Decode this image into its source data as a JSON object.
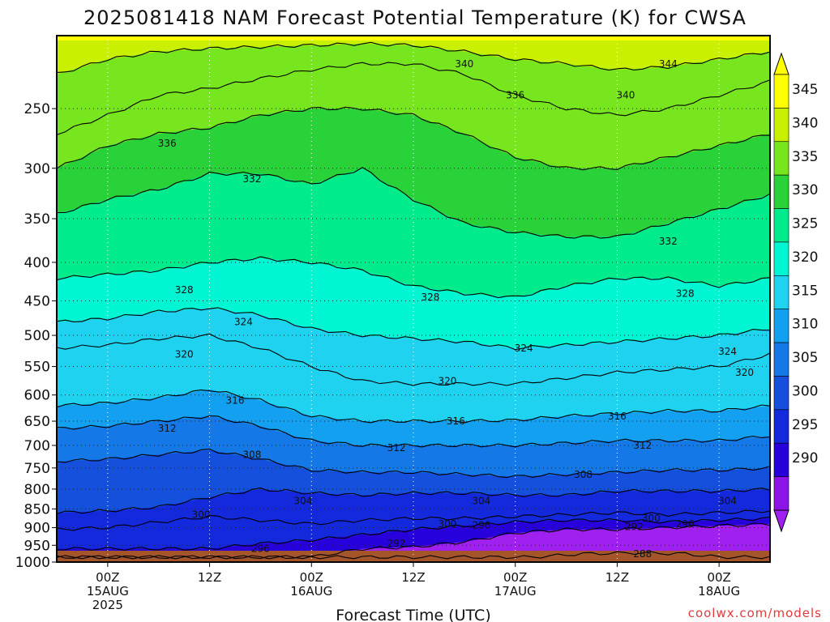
{
  "chart_data": {
    "type": "heatmap",
    "title": "2025081418 NAM Forecast Potential Temperature (K) for CWSA",
    "xlabel": "Forecast Time (UTC)",
    "ylabel": "",
    "credit": "coolwx.com/models",
    "y_scale": "log",
    "y_reversed": true,
    "ylim": [
      1000,
      200
    ],
    "y_ticks": [
      250,
      300,
      350,
      400,
      450,
      500,
      550,
      600,
      650,
      700,
      750,
      800,
      850,
      900,
      950,
      1000
    ],
    "x_ticks": [
      {
        "hour": 6,
        "line1": "00Z",
        "line2": "15AUG",
        "line3": "2025"
      },
      {
        "hour": 18,
        "line1": "12Z",
        "line2": "",
        "line3": ""
      },
      {
        "hour": 30,
        "line1": "00Z",
        "line2": "16AUG",
        "line3": ""
      },
      {
        "hour": 42,
        "line1": "12Z",
        "line2": "",
        "line3": ""
      },
      {
        "hour": 54,
        "line1": "00Z",
        "line2": "17AUG",
        "line3": ""
      },
      {
        "hour": 66,
        "line1": "12Z",
        "line2": "",
        "line3": ""
      },
      {
        "hour": 78,
        "line1": "00Z",
        "line2": "18AUG",
        "line3": ""
      }
    ],
    "x_range_hours": [
      0,
      84
    ],
    "grid": true,
    "colorbar": {
      "labels": [
        345,
        340,
        335,
        330,
        325,
        320,
        315,
        310,
        305,
        300,
        295,
        290
      ],
      "colors": [
        "#ffff00",
        "#c8f000",
        "#78e61e",
        "#2ad23a",
        "#00eb8c",
        "#00f5d2",
        "#1ed2f0",
        "#14a0f0",
        "#1478e6",
        "#1450dc",
        "#1428dc",
        "#2800dc",
        "#8c14e6"
      ],
      "top_color": "#ffff00",
      "bottom_color": "#a020f0"
    },
    "series": [
      {
        "name": "288",
        "level": 288,
        "x": [
          56,
          62,
          68,
          74,
          78
        ],
        "y": [
          985,
          975,
          972,
          975,
          985
        ]
      },
      {
        "name": "292",
        "level": 292,
        "x": [
          30,
          36,
          42,
          48,
          54,
          60,
          66,
          72,
          78,
          84
        ],
        "y": [
          985,
          960,
          955,
          940,
          915,
          905,
          905,
          900,
          895,
          890
        ]
      },
      {
        "name": "296",
        "level": 296,
        "x": [
          18,
          24,
          30,
          36,
          42,
          48,
          54,
          60,
          66,
          72,
          78,
          84
        ],
        "y": [
          960,
          945,
          935,
          920,
          905,
          895,
          885,
          880,
          880,
          885,
          880,
          875
        ]
      },
      {
        "name": "300",
        "level": 300,
        "x": [
          0,
          6,
          12,
          18,
          24,
          30,
          36,
          42,
          48,
          54,
          60,
          66,
          72,
          78,
          84
        ],
        "y": [
          905,
          900,
          885,
          870,
          880,
          890,
          880,
          875,
          875,
          870,
          865,
          860,
          865,
          860,
          855
        ]
      },
      {
        "name": "304",
        "level": 304,
        "x": [
          0,
          6,
          12,
          18,
          24,
          30,
          36,
          42,
          48,
          54,
          60,
          66,
          72,
          78,
          84
        ],
        "y": [
          860,
          855,
          845,
          820,
          800,
          810,
          815,
          810,
          810,
          815,
          815,
          805,
          805,
          805,
          800
        ]
      },
      {
        "name": "308",
        "level": 308,
        "x": [
          0,
          6,
          12,
          18,
          24,
          30,
          36,
          42,
          48,
          54,
          60,
          66,
          72,
          78,
          84
        ],
        "y": [
          735,
          730,
          720,
          710,
          730,
          755,
          760,
          760,
          765,
          770,
          765,
          760,
          755,
          755,
          750
        ]
      },
      {
        "name": "312",
        "level": 312,
        "x": [
          0,
          6,
          12,
          18,
          24,
          30,
          36,
          42,
          48,
          54,
          60,
          66,
          72,
          78,
          84
        ],
        "y": [
          665,
          660,
          650,
          640,
          660,
          690,
          700,
          700,
          700,
          700,
          695,
          690,
          690,
          690,
          680
        ]
      },
      {
        "name": "316",
        "level": 316,
        "x": [
          0,
          6,
          12,
          18,
          24,
          30,
          36,
          42,
          48,
          54,
          60,
          66,
          72,
          78,
          84
        ],
        "y": [
          620,
          615,
          605,
          590,
          610,
          640,
          650,
          650,
          650,
          648,
          640,
          635,
          630,
          630,
          620
        ]
      },
      {
        "name": "320",
        "level": 320,
        "x": [
          0,
          6,
          12,
          18,
          24,
          30,
          36,
          42,
          48,
          54,
          60,
          66,
          72,
          78,
          84
        ],
        "y": [
          520,
          515,
          505,
          500,
          520,
          550,
          575,
          580,
          580,
          580,
          570,
          560,
          555,
          550,
          530
        ]
      },
      {
        "name": "324",
        "level": 324,
        "x": [
          0,
          6,
          12,
          18,
          24,
          30,
          36,
          42,
          48,
          54,
          60,
          66,
          72,
          78,
          84
        ],
        "y": [
          480,
          475,
          465,
          460,
          470,
          490,
          500,
          505,
          510,
          520,
          515,
          510,
          505,
          500,
          490
        ]
      },
      {
        "name": "328",
        "level": 328,
        "x": [
          0,
          6,
          12,
          18,
          24,
          30,
          36,
          42,
          48,
          54,
          60,
          66,
          72,
          78,
          84
        ],
        "y": [
          420,
          415,
          410,
          400,
          395,
          400,
          410,
          430,
          440,
          445,
          430,
          420,
          420,
          430,
          420
        ]
      },
      {
        "name": "332",
        "level": 332,
        "x": [
          0,
          6,
          12,
          18,
          24,
          30,
          36,
          42,
          48,
          54,
          60,
          66,
          72,
          78,
          84
        ],
        "y": [
          345,
          330,
          320,
          305,
          305,
          315,
          300,
          330,
          355,
          365,
          370,
          370,
          355,
          340,
          325
        ]
      },
      {
        "name": "336",
        "level": 336,
        "x": [
          0,
          6,
          12,
          18,
          24,
          30,
          36,
          42,
          48,
          54,
          60,
          66,
          72,
          78,
          84
        ],
        "y": [
          300,
          280,
          270,
          265,
          255,
          250,
          250,
          255,
          270,
          290,
          300,
          300,
          290,
          280,
          270
        ]
      },
      {
        "name": "340",
        "level": 340,
        "x": [
          0,
          6,
          12,
          18,
          24,
          30,
          36,
          42,
          48,
          54,
          60,
          66,
          72,
          78,
          84
        ],
        "y": [
          270,
          255,
          240,
          235,
          228,
          222,
          218,
          218,
          225,
          240,
          250,
          255,
          250,
          240,
          230
        ]
      },
      {
        "name": "344",
        "level": 344,
        "x": [
          0,
          6,
          12,
          18,
          24,
          30,
          36,
          42,
          48,
          54,
          60,
          66,
          72,
          78,
          84
        ],
        "y": [
          225,
          215,
          210,
          208,
          207,
          206,
          205,
          206,
          210,
          215,
          218,
          222,
          220,
          215,
          210
        ]
      }
    ],
    "contour_labels": [
      {
        "text": "340",
        "x": 48,
        "y": 218
      },
      {
        "text": "344",
        "x": 72,
        "y": 218
      },
      {
        "text": "336",
        "x": 54,
        "y": 240
      },
      {
        "text": "340",
        "x": 67,
        "y": 240
      },
      {
        "text": "336",
        "x": 13,
        "y": 278
      },
      {
        "text": "332",
        "x": 23,
        "y": 310
      },
      {
        "text": "332",
        "x": 72,
        "y": 375
      },
      {
        "text": "328",
        "x": 15,
        "y": 435
      },
      {
        "text": "328",
        "x": 44,
        "y": 445
      },
      {
        "text": "328",
        "x": 74,
        "y": 440
      },
      {
        "text": "324",
        "x": 22,
        "y": 480
      },
      {
        "text": "324",
        "x": 55,
        "y": 520
      },
      {
        "text": "324",
        "x": 79,
        "y": 525
      },
      {
        "text": "320",
        "x": 15,
        "y": 530
      },
      {
        "text": "320",
        "x": 46,
        "y": 575
      },
      {
        "text": "320",
        "x": 81,
        "y": 560
      },
      {
        "text": "316",
        "x": 21,
        "y": 610
      },
      {
        "text": "316",
        "x": 47,
        "y": 650
      },
      {
        "text": "316",
        "x": 66,
        "y": 640
      },
      {
        "text": "312",
        "x": 13,
        "y": 665
      },
      {
        "text": "312",
        "x": 40,
        "y": 705
      },
      {
        "text": "312",
        "x": 69,
        "y": 700
      },
      {
        "text": "308",
        "x": 23,
        "y": 720
      },
      {
        "text": "308",
        "x": 62,
        "y": 765
      },
      {
        "text": "304",
        "x": 29,
        "y": 830
      },
      {
        "text": "304",
        "x": 50,
        "y": 830
      },
      {
        "text": "304",
        "x": 79,
        "y": 830
      },
      {
        "text": "300",
        "x": 17,
        "y": 865
      },
      {
        "text": "300",
        "x": 46,
        "y": 890
      },
      {
        "text": "296",
        "x": 50,
        "y": 893
      },
      {
        "text": "300",
        "x": 70,
        "y": 875
      },
      {
        "text": "292",
        "x": 68,
        "y": 898
      },
      {
        "text": "296",
        "x": 74,
        "y": 890
      },
      {
        "text": "296",
        "x": 24,
        "y": 960
      },
      {
        "text": "292",
        "x": 40,
        "y": 945
      },
      {
        "text": "288",
        "x": 69,
        "y": 975
      }
    ]
  }
}
